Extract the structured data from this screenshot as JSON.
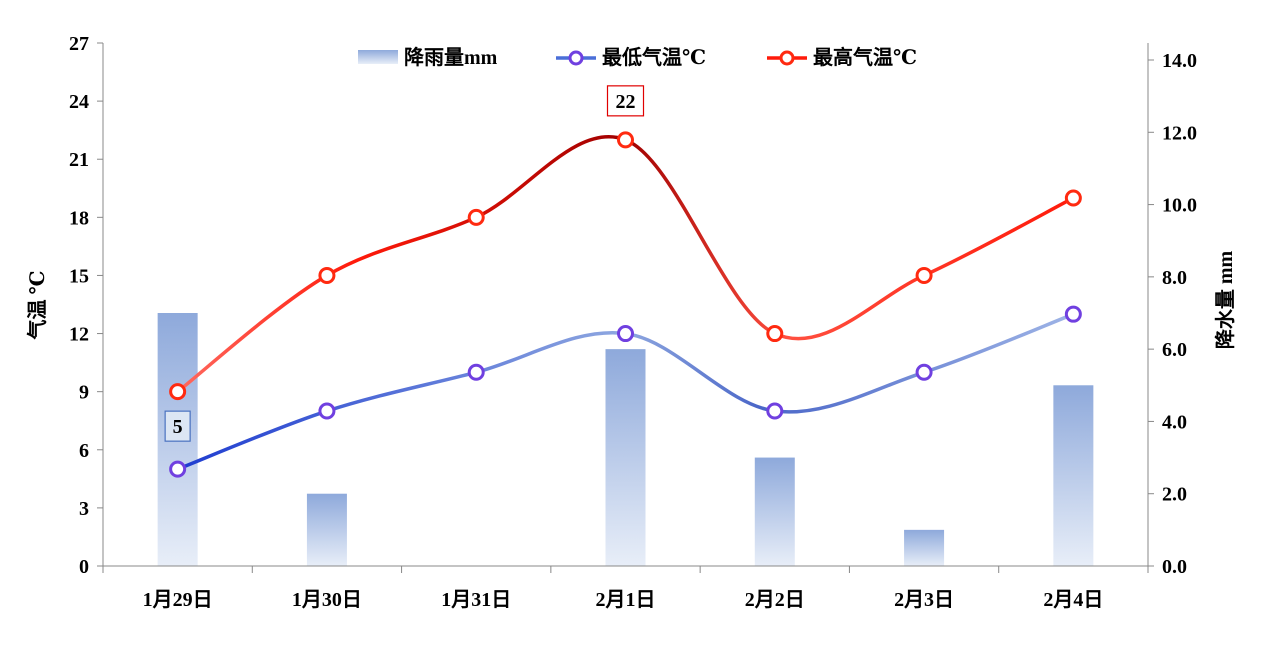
{
  "chart_data": {
    "type": "bar+line",
    "categories": [
      "1月29日",
      "1月30日",
      "1月31日",
      "2月1日",
      "2月2日",
      "2月3日",
      "2月4日"
    ],
    "series": [
      {
        "name": "降雨量mm",
        "type": "bar",
        "axis": "right",
        "values": [
          7,
          2,
          0,
          6,
          3,
          1,
          5
        ],
        "color": "#8EA9DB"
      },
      {
        "name": "最低气温℃",
        "type": "line",
        "axis": "left",
        "values": [
          5,
          8,
          10,
          12,
          8,
          10,
          13
        ],
        "color": "#4A6FD8",
        "marker": "#7040E0"
      },
      {
        "name": "最高气温℃",
        "type": "line",
        "axis": "left",
        "values": [
          9,
          15,
          18,
          22,
          12,
          15,
          19
        ],
        "color": "#FF1A0A",
        "marker": "#FF2A10"
      }
    ],
    "ylabel": "气温 ℃",
    "y2label": "降水量 mm",
    "ylim": [
      0,
      27
    ],
    "yticks": [
      "0",
      "3",
      "6",
      "9",
      "12",
      "15",
      "18",
      "21",
      "24",
      "27"
    ],
    "y2lim": [
      0,
      14
    ],
    "y2ticks": [
      "0.0",
      "2.0",
      "4.0",
      "6.0",
      "8.0",
      "10.0",
      "12.0",
      "14.0"
    ],
    "annotations": [
      {
        "series": 1,
        "index": 0,
        "text": "5"
      },
      {
        "series": 2,
        "index": 3,
        "text": "22"
      }
    ],
    "legend": "top-center",
    "grid": false
  }
}
